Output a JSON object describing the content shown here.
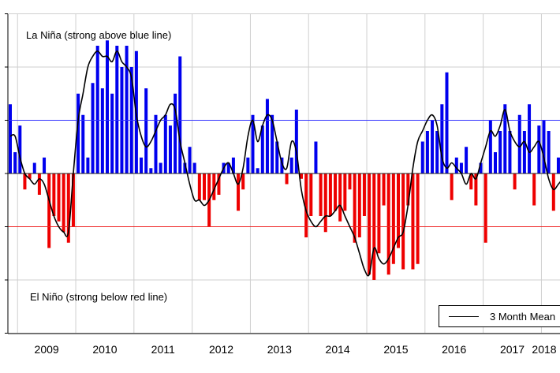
{
  "chart_data": {
    "type": "bar",
    "title": "",
    "xlabel": "",
    "ylabel": "",
    "ylim": [
      -3,
      3
    ],
    "x_ticks": [
      "2009",
      "2010",
      "2011",
      "2012",
      "2013",
      "2014",
      "2015",
      "2016",
      "2017",
      "2018"
    ],
    "thresholds": {
      "strong_la_nina": 1.0,
      "strong_el_nino": -1.0
    },
    "annotations": {
      "top": "La Niña (strong above blue line)",
      "bottom": "El Niño (strong below red line)"
    },
    "colors": {
      "positive": "#0000ee",
      "negative": "#ee0000",
      "la_nina_line": "#3333ff",
      "el_nino_line": "#ee2222",
      "mean_line": "#000000"
    },
    "legend": {
      "position": "bottom-right",
      "entries": [
        "3 Month Mean"
      ]
    },
    "start": "2008-11",
    "series": [
      {
        "kind": "bar",
        "values": [
          1.3,
          0.4,
          0.9,
          -0.3,
          -0.1,
          0.2,
          -0.4,
          0.3,
          -1.4,
          -0.8,
          -0.9,
          -1.1,
          -1.3,
          -1.0,
          1.5,
          1.1,
          0.3,
          1.7,
          2.4,
          1.6,
          2.5,
          1.5,
          2.4,
          2.0,
          2.4,
          2.0,
          2.3,
          0.3,
          1.6,
          0.1,
          1.1,
          0.2,
          1.1,
          0.9,
          1.5,
          2.2,
          0.2,
          0.5,
          0.2,
          -0.5,
          -0.5,
          -1.0,
          -0.5,
          -0.4,
          0.2,
          0.2,
          0.3,
          -0.7,
          -0.3,
          0.3,
          1.1,
          0.1,
          0.9,
          1.4,
          1.1,
          0.6,
          0.3,
          -0.2,
          0.3,
          1.2,
          -0.1,
          -1.2,
          -0.8,
          0.6,
          -0.8,
          -1.1,
          -0.8,
          -0.7,
          -0.9,
          -0.7,
          -0.3,
          -1.3,
          -1.2,
          -0.8,
          -1.9,
          -2.0,
          -1.5,
          -0.6,
          -1.9,
          -1.7,
          -1.4,
          -1.8,
          -0.6,
          -1.8,
          -1.7,
          0.6,
          0.8,
          1.0,
          0.8,
          1.3,
          1.9,
          -0.5,
          0.3,
          0.2,
          0.5,
          -0.3,
          -0.6,
          0.2,
          -1.3,
          1.0,
          0.4,
          0.8,
          1.3,
          0.8,
          -0.3,
          1.1,
          0.8,
          1.3,
          -0.6,
          0.9,
          1.0,
          0.8,
          -0.7,
          0.3,
          -0.8,
          -0.6,
          -0.4,
          -0.3
        ]
      },
      {
        "kind": "line",
        "name": "3 Month Mean",
        "values": [
          0.7,
          0.7,
          0.3,
          0.0,
          -0.1,
          -0.2,
          -0.1,
          -0.2,
          -0.5,
          -0.8,
          -1.0,
          -1.1,
          -1.1,
          0.0,
          1.0,
          1.5,
          2.0,
          2.2,
          2.3,
          2.2,
          2.2,
          2.1,
          2.3,
          2.1,
          2.0,
          1.8,
          1.1,
          0.7,
          0.5,
          0.6,
          0.8,
          1.0,
          1.1,
          1.3,
          1.2,
          0.6,
          0.2,
          -0.2,
          -0.5,
          -0.5,
          -0.6,
          -0.5,
          -0.3,
          -0.1,
          0.1,
          0.2,
          0.0,
          -0.2,
          0.1,
          0.7,
          1.0,
          0.6,
          0.9,
          1.1,
          1.0,
          0.6,
          0.2,
          0.1,
          0.6,
          0.4,
          -0.3,
          -0.7,
          -0.9,
          -1.0,
          -0.9,
          -0.8,
          -0.8,
          -0.7,
          -0.6,
          -0.8,
          -1.0,
          -1.2,
          -1.5,
          -1.8,
          -1.9,
          -1.4,
          -1.6,
          -1.7,
          -1.6,
          -1.4,
          -1.2,
          -1.1,
          -0.6,
          0.1,
          0.6,
          0.8,
          1.0,
          1.1,
          0.9,
          0.3,
          0.1,
          0.2,
          0.1,
          0.0,
          -0.2,
          0.0,
          -0.1,
          0.2,
          0.5,
          0.8,
          0.7,
          0.9,
          1.2,
          0.8,
          0.6,
          0.5,
          0.6,
          0.4,
          0.5,
          0.6,
          0.3,
          -0.1,
          -0.3,
          -0.2,
          -0.1,
          -0.1
        ]
      }
    ]
  },
  "legend": {
    "label": "3 Month Mean"
  }
}
